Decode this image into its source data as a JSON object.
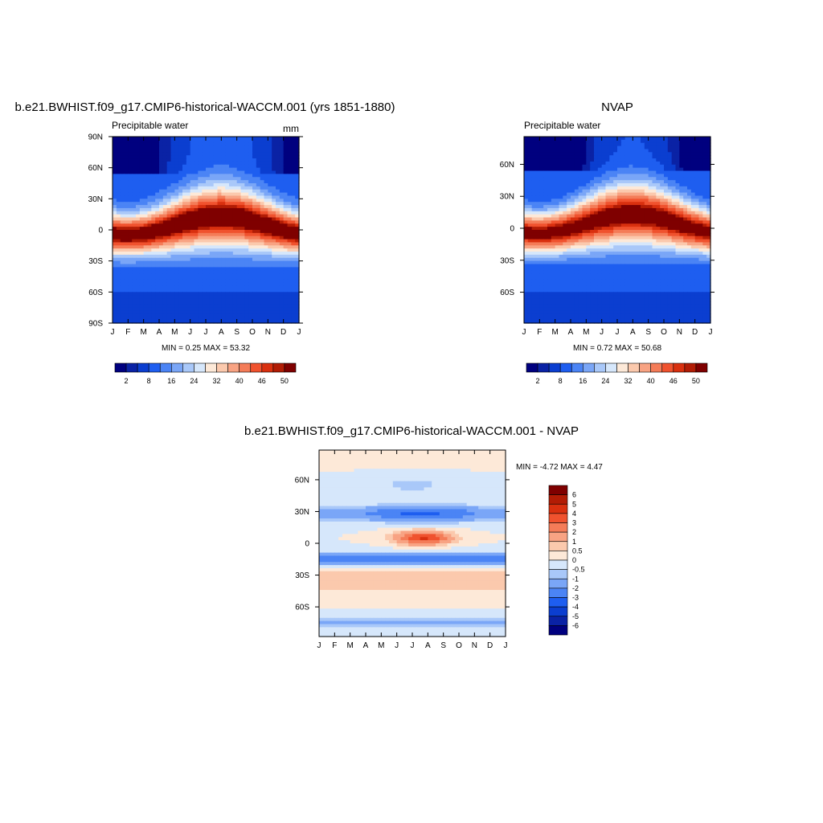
{
  "chart_data": [
    {
      "type": "heatmap",
      "id": "model",
      "title": "b.e21.BWHIST.f09_g17.CMIP6-historical-WACCM.001 (yrs 1851-1880)",
      "subtitle_left": "Precipitable water",
      "subtitle_right": "mm",
      "x_ticks": [
        "J",
        "F",
        "M",
        "A",
        "M",
        "J",
        "J",
        "A",
        "S",
        "O",
        "N",
        "D",
        "J"
      ],
      "y_ticks": [
        "90N",
        "60N",
        "30N",
        "0",
        "30S",
        "60S",
        "90S"
      ],
      "min_max_label": "MIN =   0.25 MAX =  53.32",
      "colorbar_labels": [
        "2",
        "8",
        "16",
        "24",
        "32",
        "40",
        "46",
        "50"
      ],
      "colors": [
        "#00007f",
        "#0a22a5",
        "#0b3ed0",
        "#1e5ef0",
        "#4b84f5",
        "#7aa6f7",
        "#a9c8f9",
        "#d6e7fb",
        "#fde9d8",
        "#fbc9ad",
        "#f8a383",
        "#f47c58",
        "#f0522e",
        "#d9300f",
        "#b21c05",
        "#7f0000"
      ],
      "levels": [
        1,
        2,
        4,
        8,
        12,
        16,
        20,
        24,
        28,
        32,
        36,
        40,
        44,
        46,
        48,
        50
      ]
    },
    {
      "type": "heatmap",
      "id": "obs",
      "title": "NVAP",
      "subtitle_left": "Precipitable water",
      "x_ticks": [
        "J",
        "F",
        "M",
        "A",
        "M",
        "J",
        "J",
        "A",
        "S",
        "O",
        "N",
        "D",
        "J"
      ],
      "y_ticks": [
        "60N",
        "30N",
        "0",
        "30S",
        "60S"
      ],
      "min_max_label": "MIN =   0.72 MAX =  50.68",
      "colorbar_labels": [
        "2",
        "8",
        "16",
        "24",
        "32",
        "40",
        "46",
        "50"
      ]
    },
    {
      "type": "heatmap",
      "id": "diff",
      "title": "b.e21.BWHIST.f09_g17.CMIP6-historical-WACCM.001 - NVAP",
      "x_ticks": [
        "J",
        "F",
        "M",
        "A",
        "M",
        "J",
        "J",
        "A",
        "S",
        "O",
        "N",
        "D",
        "J"
      ],
      "y_ticks": [
        "60N",
        "30N",
        "0",
        "30S",
        "60S"
      ],
      "min_max_label": "MIN =  -4.72 MAX =   4.47",
      "colorbar_labels": [
        "6",
        "5",
        "4",
        "3",
        "2",
        "1",
        "0.5",
        "0",
        "-0.5",
        "-1",
        "-2",
        "-3",
        "-4",
        "-5",
        "-6"
      ],
      "colors": [
        "#7f0000",
        "#b21c05",
        "#d9300f",
        "#f0522e",
        "#f47c58",
        "#f8a383",
        "#fbc9ad",
        "#fde9d8",
        "#d6e7fb",
        "#a9c8f9",
        "#7aa6f7",
        "#4b84f5",
        "#1e5ef0",
        "#0b3ed0",
        "#0a22a5",
        "#00007f"
      ],
      "levels": [
        6,
        5,
        4,
        3,
        2,
        1,
        0.5,
        0,
        -0.5,
        -1,
        -2,
        -3,
        -4,
        -5,
        -6
      ]
    }
  ]
}
